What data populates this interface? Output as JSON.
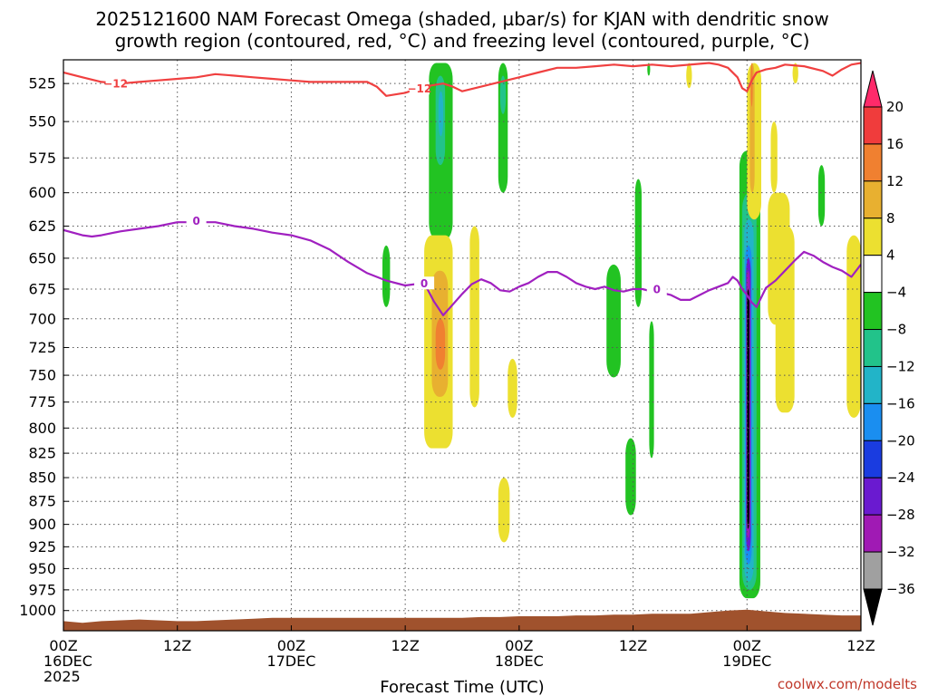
{
  "chart_data": {
    "type": "heatmap",
    "title_lines": [
      "2025121600 NAM Forecast Omega (shaded, µbar/s) for KJAN with dendritic snow",
      "growth region (contoured, red, °C) and freezing level (contoured, purple, °C)"
    ],
    "xlabel": "Forecast Time (UTC)",
    "credit": "coolwx.com/modelts",
    "x_unit": "hours since 2025-12-16 00Z",
    "xlim": [
      0,
      84
    ],
    "x_ticks": [
      {
        "x": 0,
        "lines": [
          "00Z",
          "16DEC",
          "2025"
        ]
      },
      {
        "x": 12,
        "lines": [
          "12Z"
        ]
      },
      {
        "x": 24,
        "lines": [
          "00Z",
          "17DEC"
        ]
      },
      {
        "x": 36,
        "lines": [
          "12Z"
        ]
      },
      {
        "x": 48,
        "lines": [
          "00Z",
          "18DEC"
        ]
      },
      {
        "x": 60,
        "lines": [
          "12Z"
        ]
      },
      {
        "x": 72,
        "lines": [
          "00Z",
          "19DEC"
        ]
      },
      {
        "x": 84,
        "lines": [
          "12Z"
        ]
      }
    ],
    "y_unit": "hPa",
    "y_scale": "log",
    "ylim": [
      1025,
      510
    ],
    "y_ticks": [
      525,
      550,
      575,
      600,
      625,
      650,
      675,
      700,
      725,
      750,
      775,
      800,
      825,
      850,
      875,
      900,
      925,
      950,
      975,
      1000
    ],
    "grid": true,
    "colorbar": {
      "labels": [
        "20",
        "16",
        "12",
        "8",
        "4",
        "−4",
        "−8",
        "−12",
        "−16",
        "−20",
        "−24",
        "−28",
        "−32",
        "−36"
      ],
      "colors": [
        "#ff2a6a",
        "#f03c3c",
        "#f08030",
        "#e8b030",
        "#ece030",
        "#ffffff",
        "#22c322",
        "#22c38a",
        "#22b4c8",
        "#1a8ef0",
        "#1a3ce0",
        "#6a1ad0",
        "#a01ab4",
        "#a0a0a0",
        "#000000"
      ]
    },
    "omega_cells": [
      {
        "t": [
          33.6,
          34.4
        ],
        "p": [
          640,
          690
        ],
        "c": "#22c322"
      },
      {
        "t": [
          38.5,
          41.0
        ],
        "p": [
          512,
          635
        ],
        "c": "#22c322"
      },
      {
        "t": [
          39.2,
          40.2
        ],
        "p": [
          520,
          580
        ],
        "c": "#22c38a"
      },
      {
        "t": [
          39.5,
          40.0
        ],
        "p": [
          530,
          560
        ],
        "c": "#22b4c8"
      },
      {
        "t": [
          45.8,
          46.8
        ],
        "p": [
          512,
          600
        ],
        "c": "#22c322"
      },
      {
        "t": [
          46.0,
          46.6
        ],
        "p": [
          520,
          545
        ],
        "c": "#22c38a"
      },
      {
        "t": [
          38.0,
          41.0
        ],
        "p": [
          632,
          820
        ],
        "c": "#ece030"
      },
      {
        "t": [
          38.8,
          40.5
        ],
        "p": [
          660,
          770
        ],
        "c": "#e8b030"
      },
      {
        "t": [
          39.2,
          40.2
        ],
        "p": [
          700,
          745
        ],
        "c": "#f08030"
      },
      {
        "t": [
          42.8,
          43.8
        ],
        "p": [
          625,
          780
        ],
        "c": "#ece030"
      },
      {
        "t": [
          46.8,
          47.8
        ],
        "p": [
          735,
          790
        ],
        "c": "#ece030"
      },
      {
        "t": [
          45.8,
          47.0
        ],
        "p": [
          850,
          920
        ],
        "c": "#ece030"
      },
      {
        "t": [
          57.2,
          58.7
        ],
        "p": [
          655,
          752
        ],
        "c": "#22c322"
      },
      {
        "t": [
          59.2,
          60.3
        ],
        "p": [
          810,
          890
        ],
        "c": "#22c322"
      },
      {
        "t": [
          60.2,
          60.9
        ],
        "p": [
          590,
          690
        ],
        "c": "#22c322"
      },
      {
        "t": [
          61.7,
          62.2
        ],
        "p": [
          702,
          830
        ],
        "c": "#22c322"
      },
      {
        "t": [
          61.5,
          61.8
        ],
        "p": [
          512,
          520
        ],
        "c": "#22c322"
      },
      {
        "t": [
          71.2,
          73.4
        ],
        "p": [
          570,
          985
        ],
        "c": "#22c322"
      },
      {
        "t": [
          71.5,
          73.0
        ],
        "p": [
          600,
          975
        ],
        "c": "#22c38a"
      },
      {
        "t": [
          71.7,
          72.7
        ],
        "p": [
          620,
          965
        ],
        "c": "#22b4c8"
      },
      {
        "t": [
          71.8,
          72.5
        ],
        "p": [
          640,
          945
        ],
        "c": "#1a8ef0"
      },
      {
        "t": [
          71.9,
          72.4
        ],
        "p": [
          650,
          930
        ],
        "c": "#6a1ad0"
      },
      {
        "t": [
          71.95,
          72.3
        ],
        "p": [
          660,
          915
        ],
        "c": "#a01ab4"
      },
      {
        "t": [
          72.0,
          72.25
        ],
        "p": [
          675,
          905
        ],
        "c": "#000000"
      },
      {
        "t": [
          72.0,
          73.5
        ],
        "p": [
          512,
          620
        ],
        "c": "#ece030"
      },
      {
        "t": [
          72.3,
          72.8
        ],
        "p": [
          512,
          600
        ],
        "c": "#e8b030"
      },
      {
        "t": [
          72.4,
          72.6
        ],
        "p": [
          512,
          540
        ],
        "c": "#f08030"
      },
      {
        "t": [
          74.5,
          75.2
        ],
        "p": [
          550,
          600
        ],
        "c": "#ece030"
      },
      {
        "t": [
          74.2,
          76.5
        ],
        "p": [
          600,
          705
        ],
        "c": "#ece030"
      },
      {
        "t": [
          75.0,
          77.0
        ],
        "p": [
          625,
          785
        ],
        "c": "#ece030"
      },
      {
        "t": [
          79.5,
          80.2
        ],
        "p": [
          580,
          625
        ],
        "c": "#22c322"
      },
      {
        "t": [
          82.5,
          84.0
        ],
        "p": [
          632,
          790
        ],
        "c": "#ece030"
      },
      {
        "t": [
          65.6,
          66.2
        ],
        "p": [
          512,
          528
        ],
        "c": "#ece030"
      },
      {
        "t": [
          76.8,
          77.4
        ],
        "p": [
          512,
          525
        ],
        "c": "#ece030"
      }
    ],
    "dgz_contour": {
      "color": "#f04040",
      "label": "−12",
      "label_points": [
        [
          5.5,
          525
        ],
        [
          37.5,
          528
        ]
      ],
      "points": [
        [
          0,
          518
        ],
        [
          2,
          521
        ],
        [
          4,
          524
        ],
        [
          6,
          525
        ],
        [
          8,
          524
        ],
        [
          10,
          523
        ],
        [
          12,
          522
        ],
        [
          14,
          521
        ],
        [
          16,
          519
        ],
        [
          18,
          520
        ],
        [
          20,
          521
        ],
        [
          22,
          522
        ],
        [
          24,
          523
        ],
        [
          26,
          524
        ],
        [
          28,
          524
        ],
        [
          30,
          524
        ],
        [
          32,
          524
        ],
        [
          33,
          527
        ],
        [
          34,
          533
        ],
        [
          36,
          531
        ],
        [
          38,
          527
        ],
        [
          40,
          525
        ],
        [
          41,
          527
        ],
        [
          42,
          530
        ],
        [
          44,
          527
        ],
        [
          46,
          524
        ],
        [
          48,
          521
        ],
        [
          50,
          518
        ],
        [
          52,
          515
        ],
        [
          54,
          515
        ],
        [
          56,
          514
        ],
        [
          58,
          513
        ],
        [
          60,
          514
        ],
        [
          62,
          513
        ],
        [
          64,
          514
        ],
        [
          66,
          513
        ],
        [
          68,
          512
        ],
        [
          69,
          513
        ],
        [
          70,
          515
        ],
        [
          71,
          521
        ],
        [
          71.5,
          528
        ],
        [
          72,
          530
        ],
        [
          72.5,
          523
        ],
        [
          73,
          518
        ],
        [
          74,
          516
        ],
        [
          75,
          515
        ],
        [
          76,
          513
        ],
        [
          78,
          514
        ],
        [
          80,
          517
        ],
        [
          81,
          520
        ],
        [
          82,
          516
        ],
        [
          83,
          513
        ],
        [
          84,
          512
        ]
      ]
    },
    "freezing_contour": {
      "color": "#a020c0",
      "label": "0",
      "label_points": [
        [
          14,
          621
        ],
        [
          38,
          670
        ],
        [
          62.5,
          675
        ]
      ],
      "points": [
        [
          0,
          628
        ],
        [
          2,
          632
        ],
        [
          3,
          633
        ],
        [
          4,
          632
        ],
        [
          6,
          629
        ],
        [
          8,
          627
        ],
        [
          10,
          625
        ],
        [
          12,
          622
        ],
        [
          14,
          622
        ],
        [
          16,
          622
        ],
        [
          18,
          625
        ],
        [
          20,
          627
        ],
        [
          22,
          630
        ],
        [
          24,
          632
        ],
        [
          26,
          636
        ],
        [
          28,
          643
        ],
        [
          30,
          653
        ],
        [
          32,
          662
        ],
        [
          34,
          668
        ],
        [
          36,
          672
        ],
        [
          37,
          671
        ],
        [
          38,
          670
        ],
        [
          39,
          685
        ],
        [
          40,
          697
        ],
        [
          41,
          688
        ],
        [
          42,
          679
        ],
        [
          43,
          671
        ],
        [
          44,
          667
        ],
        [
          45,
          670
        ],
        [
          46,
          676
        ],
        [
          47,
          677
        ],
        [
          48,
          673
        ],
        [
          49,
          670
        ],
        [
          50,
          665
        ],
        [
          51,
          661
        ],
        [
          52,
          661
        ],
        [
          53,
          665
        ],
        [
          54,
          670
        ],
        [
          55,
          673
        ],
        [
          56,
          675
        ],
        [
          57,
          673
        ],
        [
          58,
          676
        ],
        [
          59,
          677
        ],
        [
          60,
          675
        ],
        [
          61,
          675
        ],
        [
          62,
          677
        ],
        [
          63,
          678
        ],
        [
          64,
          680
        ],
        [
          65,
          684
        ],
        [
          66,
          684
        ],
        [
          67,
          680
        ],
        [
          68,
          676
        ],
        [
          69,
          673
        ],
        [
          70,
          670
        ],
        [
          70.5,
          665
        ],
        [
          71,
          668
        ],
        [
          71.5,
          675
        ],
        [
          72,
          680
        ],
        [
          72.5,
          686
        ],
        [
          73,
          690
        ],
        [
          73.5,
          682
        ],
        [
          74,
          674
        ],
        [
          75,
          668
        ],
        [
          76,
          660
        ],
        [
          77,
          652
        ],
        [
          78,
          645
        ],
        [
          79,
          648
        ],
        [
          80,
          653
        ],
        [
          81,
          657
        ],
        [
          82,
          660
        ],
        [
          83,
          665
        ],
        [
          84,
          655
        ]
      ]
    },
    "terrain": {
      "color": "#a0522d",
      "surface": [
        [
          0,
          1013
        ],
        [
          2,
          1015
        ],
        [
          4,
          1013
        ],
        [
          6,
          1012
        ],
        [
          8,
          1011
        ],
        [
          10,
          1012
        ],
        [
          12,
          1013
        ],
        [
          14,
          1013
        ],
        [
          16,
          1012
        ],
        [
          18,
          1011
        ],
        [
          20,
          1010
        ],
        [
          22,
          1009
        ],
        [
          24,
          1009
        ],
        [
          26,
          1009
        ],
        [
          28,
          1009
        ],
        [
          30,
          1009
        ],
        [
          32,
          1009
        ],
        [
          34,
          1009
        ],
        [
          36,
          1009
        ],
        [
          38,
          1009
        ],
        [
          40,
          1009
        ],
        [
          42,
          1009
        ],
        [
          44,
          1008
        ],
        [
          46,
          1008
        ],
        [
          48,
          1007
        ],
        [
          50,
          1007
        ],
        [
          52,
          1007
        ],
        [
          54,
          1006
        ],
        [
          56,
          1006
        ],
        [
          58,
          1005
        ],
        [
          60,
          1005
        ],
        [
          62,
          1004
        ],
        [
          64,
          1004
        ],
        [
          66,
          1004
        ],
        [
          68,
          1002
        ],
        [
          70,
          1000
        ],
        [
          72,
          999
        ],
        [
          74,
          1001
        ],
        [
          76,
          1003
        ],
        [
          78,
          1004
        ],
        [
          80,
          1005
        ],
        [
          82,
          1006
        ],
        [
          84,
          1006
        ]
      ]
    }
  }
}
